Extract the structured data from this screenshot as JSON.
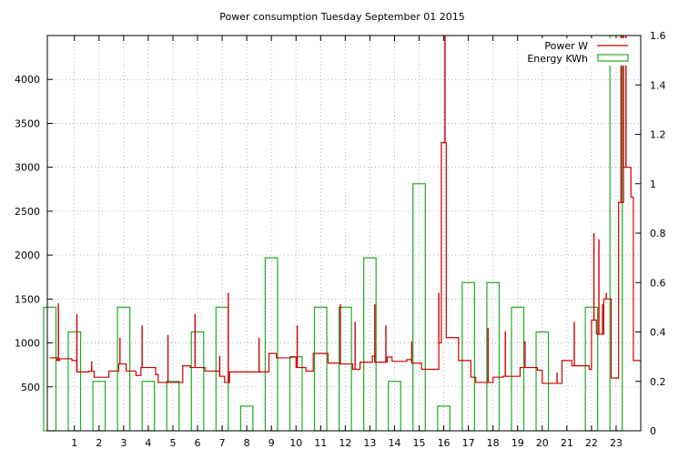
{
  "chart_data": {
    "type": "bar+line",
    "title": "Power consumption Tuesday September 01 2015",
    "xlabel": "",
    "ylabel": "",
    "y2label": "",
    "x_ticks": [
      "1",
      "2",
      "3",
      "4",
      "5",
      "6",
      "7",
      "8",
      "9",
      "10",
      "11",
      "12",
      "13",
      "14",
      "15",
      "16",
      "17",
      "18",
      "19",
      "20",
      "21",
      "22",
      "23"
    ],
    "xlim": [
      -0.1,
      24.0
    ],
    "ylim_left": [
      0,
      4500
    ],
    "y_ticks_left": [
      500,
      1000,
      1500,
      2000,
      2500,
      3000,
      3500,
      4000
    ],
    "ylim_right": [
      0,
      1.6
    ],
    "y_ticks_right": [
      "0",
      "0.2",
      "0.4",
      "0.6",
      "0.8",
      "1",
      "1.2",
      "1.4",
      "1.6"
    ],
    "grid": true,
    "legend_position": "top-right",
    "colors": {
      "power": "#cc0000",
      "energy": "#22aa22",
      "grid": "#a0a0a0",
      "axis": "#000000"
    },
    "series": [
      {
        "name": "Power W",
        "type": "line",
        "axis": "left",
        "base_steps": [
          [
            0.0,
            830
          ],
          [
            0.3,
            800
          ],
          [
            0.4,
            820
          ],
          [
            0.9,
            800
          ],
          [
            1.1,
            670
          ],
          [
            1.6,
            680
          ],
          [
            1.8,
            610
          ],
          [
            2.4,
            680
          ],
          [
            2.8,
            760
          ],
          [
            3.1,
            680
          ],
          [
            3.5,
            630
          ],
          [
            3.7,
            720
          ],
          [
            4.3,
            640
          ],
          [
            4.4,
            550
          ],
          [
            5.4,
            740
          ],
          [
            5.7,
            720
          ],
          [
            6.3,
            680
          ],
          [
            6.9,
            620
          ],
          [
            7.1,
            550
          ],
          [
            7.3,
            670
          ],
          [
            8.9,
            880
          ],
          [
            9.2,
            830
          ],
          [
            9.8,
            840
          ],
          [
            10.0,
            720
          ],
          [
            10.4,
            680
          ],
          [
            10.7,
            880
          ],
          [
            11.3,
            770
          ],
          [
            11.8,
            760
          ],
          [
            12.3,
            700
          ],
          [
            12.6,
            780
          ],
          [
            13.1,
            850
          ],
          [
            13.2,
            780
          ],
          [
            13.7,
            840
          ],
          [
            13.9,
            790
          ],
          [
            14.5,
            810
          ],
          [
            14.7,
            770
          ],
          [
            15.1,
            700
          ],
          [
            15.8,
            1000
          ],
          [
            15.9,
            3280
          ],
          [
            16.1,
            1060
          ],
          [
            16.6,
            800
          ],
          [
            17.1,
            610
          ],
          [
            17.3,
            550
          ],
          [
            18.0,
            610
          ],
          [
            18.4,
            620
          ],
          [
            19.1,
            720
          ],
          [
            19.8,
            690
          ],
          [
            20.0,
            540
          ],
          [
            20.8,
            800
          ],
          [
            21.2,
            740
          ],
          [
            21.9,
            700
          ],
          [
            22.0,
            1260
          ],
          [
            22.2,
            1100
          ],
          [
            22.5,
            1500
          ],
          [
            22.8,
            600
          ],
          [
            23.1,
            2600
          ],
          [
            23.3,
            3000
          ],
          [
            23.6,
            2660
          ],
          [
            23.7,
            800
          ]
        ],
        "spikes": [
          [
            0.35,
            1450
          ],
          [
            1.1,
            1330
          ],
          [
            1.7,
            790
          ],
          [
            2.85,
            1060
          ],
          [
            3.75,
            1200
          ],
          [
            4.8,
            1090
          ],
          [
            5.9,
            1330
          ],
          [
            6.9,
            850
          ],
          [
            7.25,
            1570
          ],
          [
            8.5,
            1060
          ],
          [
            10.05,
            1200
          ],
          [
            11.8,
            1440
          ],
          [
            12.4,
            1240
          ],
          [
            13.2,
            1440
          ],
          [
            13.65,
            1200
          ],
          [
            14.7,
            1020
          ],
          [
            15.8,
            1570
          ],
          [
            16.05,
            4500
          ],
          [
            17.8,
            1170
          ],
          [
            18.5,
            1130
          ],
          [
            19.3,
            1020
          ],
          [
            20.6,
            660
          ],
          [
            21.3,
            1240
          ],
          [
            22.1,
            2250
          ],
          [
            22.3,
            2180
          ],
          [
            22.45,
            1440
          ],
          [
            22.6,
            1570
          ],
          [
            23.2,
            4500
          ],
          [
            23.3,
            4500
          ],
          [
            23.4,
            4500
          ]
        ],
        "end_value": 800
      },
      {
        "name": "Energy KWh",
        "type": "bar",
        "axis": "right",
        "x": [
          0,
          1,
          2,
          3,
          4,
          5,
          6,
          7,
          8,
          9,
          10,
          11,
          12,
          13,
          14,
          15,
          16,
          17,
          18,
          19,
          20,
          21,
          22,
          23
        ],
        "values": [
          0.5,
          0.4,
          0.2,
          0.5,
          0.2,
          0.2,
          0.4,
          0.5,
          0.1,
          0.7,
          0.3,
          0.5,
          0.5,
          0.7,
          0.2,
          1.0,
          0.1,
          0.6,
          0.6,
          0.5,
          0.4,
          0.0,
          0.5,
          1.6
        ],
        "bar_width": 0.5
      }
    ]
  }
}
